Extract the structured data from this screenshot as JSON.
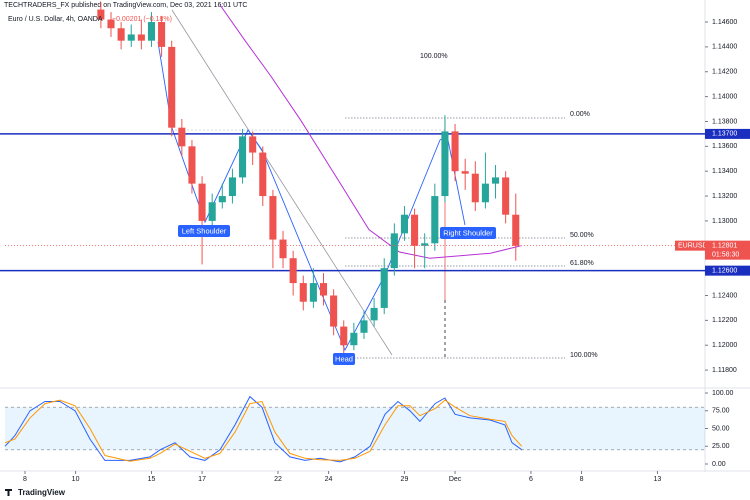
{
  "header": "TECHTRADERS_FX published on TradingView.com, Dec 03, 2021 16:01 UTC",
  "footer": "TradingView",
  "chart_data": {
    "type": "candlestick",
    "symbol_legend": "Euro / U.S. Dollar, 4h, OANDA",
    "change_legend": "−0.00201 (−0.18%)",
    "up_color": "#26a69a",
    "down_color": "#ef5350",
    "xlim": [
      -0.79,
      26.88
    ],
    "xticks": [
      {
        "value": 0,
        "label": "8"
      },
      {
        "value": 2,
        "label": "10"
      },
      {
        "value": 5,
        "label": "15"
      },
      {
        "value": 7,
        "label": "17"
      },
      {
        "value": 10,
        "label": "22"
      },
      {
        "value": 12,
        "label": "24"
      },
      {
        "value": 15,
        "label": "29"
      },
      {
        "value": 17,
        "label": "Dec"
      },
      {
        "value": 20,
        "label": "6"
      },
      {
        "value": 22,
        "label": "8"
      },
      {
        "value": 25,
        "label": "13"
      }
    ],
    "ylim": [
      1.1168,
      1.14737
    ],
    "yticks": [
      {
        "value": 1.118,
        "label": "1.11800"
      },
      {
        "value": 1.12,
        "label": "1.12000"
      },
      {
        "value": 1.122,
        "label": "1.12200"
      },
      {
        "value": 1.124,
        "label": "1.12400"
      },
      {
        "value": 1.13,
        "label": "1.13000"
      },
      {
        "value": 1.132,
        "label": "1.13200"
      },
      {
        "value": 1.134,
        "label": "1.13400"
      },
      {
        "value": 1.136,
        "label": "1.13600"
      },
      {
        "value": 1.138,
        "label": "1.13800"
      },
      {
        "value": 1.14,
        "label": "1.14000"
      },
      {
        "value": 1.142,
        "label": "1.14200"
      },
      {
        "value": 1.144,
        "label": "1.14400"
      },
      {
        "value": 1.146,
        "label": "1.14600"
      }
    ],
    "x": [
      3.0,
      3.4,
      3.8,
      4.2,
      4.6,
      5.0,
      5.4,
      5.8,
      6.2,
      6.6,
      7.0,
      7.4,
      7.8,
      8.2,
      8.6,
      9.0,
      9.4,
      9.8,
      10.2,
      10.6,
      11.0,
      11.4,
      11.8,
      12.2,
      12.6,
      13.0,
      13.4,
      13.8,
      14.2,
      14.6,
      15.0,
      15.4,
      15.8,
      16.2,
      16.6,
      17.0,
      17.4,
      17.8,
      18.2,
      18.6,
      19.0,
      19.4
    ],
    "open": [
      1.147,
      1.1462,
      1.1455,
      1.1445,
      1.145,
      1.1445,
      1.146,
      1.144,
      1.1375,
      1.136,
      1.133,
      1.13,
      1.1315,
      1.132,
      1.1335,
      1.1368,
      1.1355,
      1.132,
      1.1285,
      1.127,
      1.125,
      1.1235,
      1.125,
      1.124,
      1.1215,
      1.12,
      1.121,
      1.122,
      1.123,
      1.1262,
      1.129,
      1.1305,
      1.128,
      1.1282,
      1.132,
      1.1372,
      1.134,
      1.1338,
      1.1315,
      1.133,
      1.1335,
      1.1305
    ],
    "high": [
      1.1476,
      1.1468,
      1.146,
      1.1458,
      1.1462,
      1.1468,
      1.1465,
      1.1445,
      1.1382,
      1.1365,
      1.1336,
      1.1322,
      1.133,
      1.1342,
      1.1374,
      1.1372,
      1.136,
      1.1325,
      1.1292,
      1.1276,
      1.1256,
      1.1262,
      1.1258,
      1.1245,
      1.122,
      1.1218,
      1.1228,
      1.1238,
      1.127,
      1.1298,
      1.1312,
      1.131,
      1.129,
      1.133,
      1.1385,
      1.1378,
      1.135,
      1.1348,
      1.1355,
      1.1345,
      1.134,
      1.1322
    ],
    "low": [
      1.1455,
      1.1448,
      1.1438,
      1.144,
      1.1438,
      1.144,
      1.1432,
      1.1368,
      1.1352,
      1.1322,
      1.1265,
      1.1295,
      1.131,
      1.1314,
      1.133,
      1.1345,
      1.1312,
      1.1262,
      1.1262,
      1.124,
      1.1228,
      1.123,
      1.1232,
      1.1208,
      1.1193,
      1.1196,
      1.1205,
      1.1215,
      1.1225,
      1.1256,
      1.1284,
      1.1262,
      1.1262,
      1.1276,
      1.1315,
      1.1332,
      1.1325,
      1.1308,
      1.131,
      1.1318,
      1.1298,
      1.1268
    ],
    "close": [
      1.1462,
      1.1455,
      1.1445,
      1.145,
      1.1445,
      1.146,
      1.144,
      1.1375,
      1.136,
      1.133,
      1.13,
      1.1315,
      1.132,
      1.1335,
      1.1368,
      1.1355,
      1.132,
      1.1285,
      1.127,
      1.125,
      1.1235,
      1.125,
      1.124,
      1.1215,
      1.12,
      1.121,
      1.122,
      1.123,
      1.1262,
      1.129,
      1.1305,
      1.128,
      1.1282,
      1.132,
      1.1372,
      1.134,
      1.1338,
      1.1315,
      1.133,
      1.1335,
      1.1305,
      1.128
    ],
    "moving_average": {
      "color": "#b530d6",
      "x": [
        7.7,
        8.7,
        9.7,
        10.9,
        12.5,
        13.6,
        14.8,
        16.0,
        17.2,
        18.4,
        19.6
      ],
      "values": [
        1.1474,
        1.1445,
        1.1417,
        1.1381,
        1.1329,
        1.1293,
        1.1275,
        1.127,
        1.1272,
        1.1274,
        1.128
      ]
    },
    "levels": [
      {
        "value": 1.137,
        "label": "1.13700",
        "color": "#1a2fbf"
      },
      {
        "value": 1.126,
        "label": "1.12600",
        "color": "#1a2fbf"
      }
    ],
    "last_price": {
      "value": 1.12801,
      "label": "1.12801",
      "symbol": "EURUSD",
      "countdown": "01:58:30"
    },
    "annotations": {
      "left_shoulder": "Left Shoulder",
      "head": "Head",
      "right_shoulder": "Right Shoulder",
      "fib_top": "100.00%",
      "fib_0": "0.00%",
      "fib_50": "50.00%",
      "fib_618": "61.80%",
      "fib_100": "100.00%"
    },
    "oscillator": {
      "ylim": [
        0,
        100
      ],
      "yticks": [
        {
          "value": 0,
          "label": "0.00"
        },
        {
          "value": 25,
          "label": "25.00"
        },
        {
          "value": 50,
          "label": "50.00"
        },
        {
          "value": 75,
          "label": "75.00"
        },
        {
          "value": 100,
          "label": "100.00"
        }
      ],
      "bands": [
        20,
        80
      ],
      "x": [
        -0.79,
        -0.4,
        0.2,
        0.79,
        1.38,
        1.98,
        2.57,
        3.16,
        4.15,
        4.94,
        5.34,
        5.93,
        6.52,
        7.11,
        7.71,
        8.3,
        8.89,
        9.37,
        9.88,
        10.47,
        11.07,
        11.66,
        12.45,
        13.04,
        13.64,
        14.23,
        14.74,
        15.22,
        15.61,
        16.21,
        16.6,
        17.0,
        17.59,
        18.38,
        18.97,
        19.25,
        19.64
      ],
      "series": [
        {
          "color": "#2962ff",
          "values": [
            25,
            40,
            75,
            88,
            88,
            75,
            35,
            5,
            5,
            10,
            20,
            30,
            10,
            5,
            20,
            55,
            95,
            80,
            30,
            10,
            5,
            8,
            3,
            10,
            25,
            70,
            88,
            75,
            60,
            85,
            93,
            70,
            65,
            62,
            55,
            30,
            20
          ]
        },
        {
          "color": "#ff9800",
          "values": [
            30,
            35,
            65,
            85,
            90,
            82,
            50,
            12,
            4,
            8,
            15,
            28,
            18,
            8,
            15,
            45,
            85,
            88,
            45,
            15,
            8,
            6,
            5,
            8,
            18,
            55,
            82,
            82,
            68,
            78,
            90,
            80,
            68,
            63,
            60,
            40,
            25
          ]
        }
      ]
    }
  }
}
